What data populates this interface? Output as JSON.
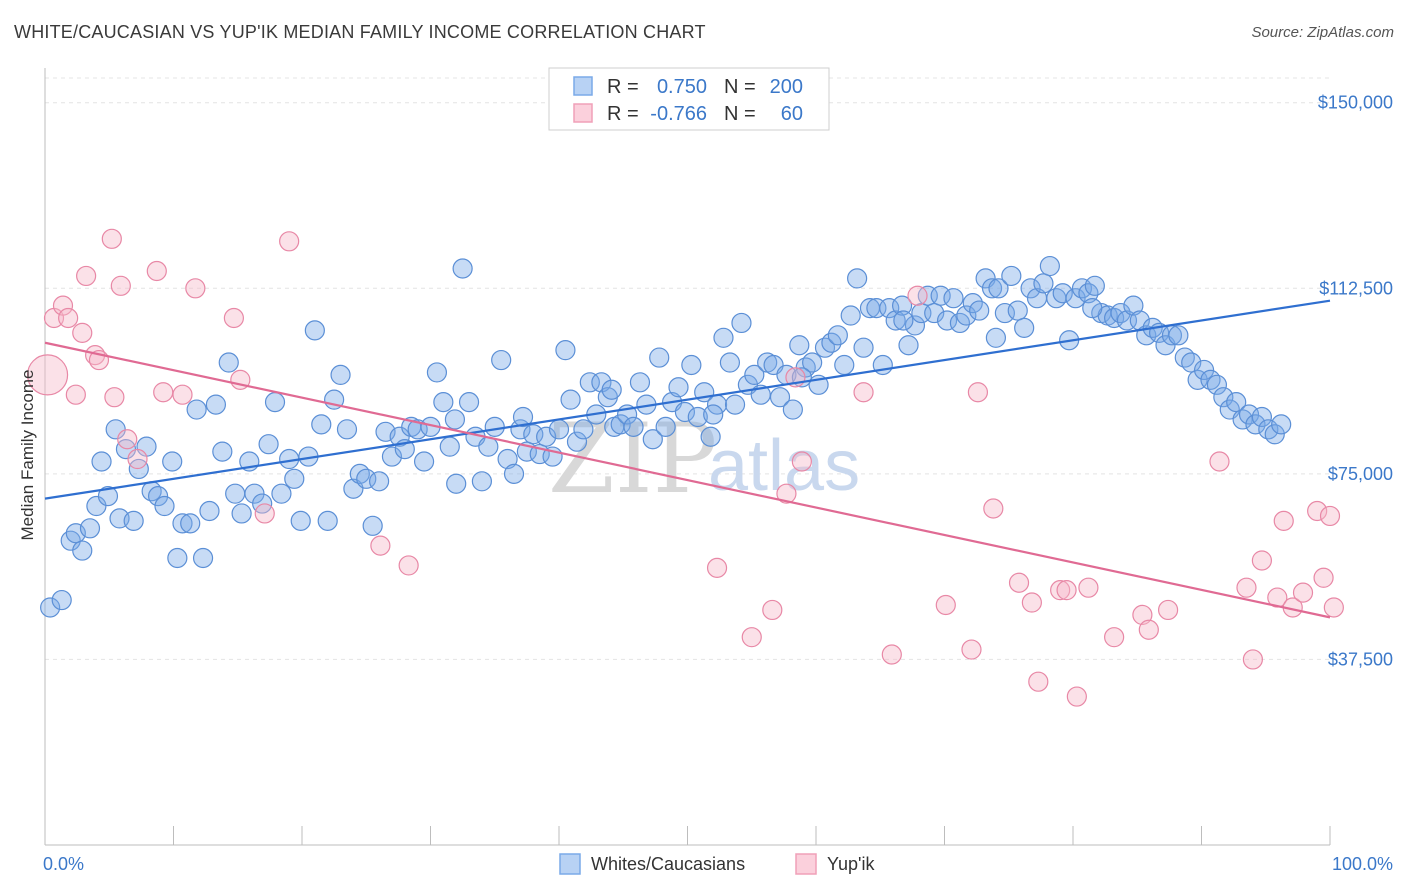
{
  "title": "WHITE/CAUCASIAN VS YUP'IK MEDIAN FAMILY INCOME CORRELATION CHART",
  "source": "Source: ZipAtlas.com",
  "watermark": {
    "zip": "ZIP",
    "atlas": "atlas"
  },
  "legend": {
    "r_label": "R =",
    "n_label": "N =",
    "rows": [
      {
        "r": "0.750",
        "n": "200",
        "color": "#7aaae8"
      },
      {
        "r": "-0.766",
        "n": "60",
        "color": "#f0a0b8"
      }
    ]
  },
  "chart_data": {
    "type": "scatter",
    "title": "WHITE/CAUCASIAN VS YUP'IK MEDIAN FAMILY INCOME CORRELATION CHART",
    "xlabel": "",
    "ylabel": "Median Family Income",
    "xlim": [
      0,
      100
    ],
    "ylim": [
      0,
      155000
    ],
    "x_tick_labels": [
      "0.0%",
      "100.0%"
    ],
    "y_ticks": [
      37500,
      75000,
      112500,
      150000
    ],
    "y_tick_labels": [
      "$37,500",
      "$75,000",
      "$112,500",
      "$150,000"
    ],
    "grid": true,
    "legend_position": "top-center",
    "series": [
      {
        "name": "Whites/Caucasians",
        "color": "#7aaae8",
        "stroke": "#5b8fd6",
        "trend": {
          "x": [
            0,
            100
          ],
          "y": [
            70000,
            110000
          ],
          "color": "#2f6fd0"
        },
        "points": [
          [
            0.4,
            48000
          ],
          [
            1.3,
            49500
          ],
          [
            2.0,
            61500
          ],
          [
            2.4,
            63000
          ],
          [
            2.9,
            59500
          ],
          [
            3.5,
            64000
          ],
          [
            4.0,
            68500
          ],
          [
            4.4,
            77500
          ],
          [
            4.9,
            70500
          ],
          [
            5.5,
            84000
          ],
          [
            5.8,
            66000
          ],
          [
            6.3,
            80000
          ],
          [
            6.9,
            65500
          ],
          [
            7.3,
            76000
          ],
          [
            7.9,
            80500
          ],
          [
            8.3,
            71500
          ],
          [
            8.8,
            70500
          ],
          [
            9.3,
            68500
          ],
          [
            9.9,
            77500
          ],
          [
            10.3,
            58000
          ],
          [
            10.7,
            65000
          ],
          [
            11.3,
            65000
          ],
          [
            11.8,
            88000
          ],
          [
            12.3,
            58000
          ],
          [
            12.8,
            67500
          ],
          [
            13.3,
            89000
          ],
          [
            13.8,
            79500
          ],
          [
            14.3,
            97500
          ],
          [
            14.8,
            71000
          ],
          [
            15.3,
            67000
          ],
          [
            15.9,
            77500
          ],
          [
            16.3,
            71000
          ],
          [
            16.9,
            69000
          ],
          [
            17.4,
            81000
          ],
          [
            17.9,
            89500
          ],
          [
            18.4,
            71000
          ],
          [
            19.0,
            78000
          ],
          [
            19.4,
            74000
          ],
          [
            19.9,
            65500
          ],
          [
            20.5,
            78500
          ],
          [
            21.0,
            104000
          ],
          [
            21.5,
            85000
          ],
          [
            22.0,
            65500
          ],
          [
            22.5,
            90000
          ],
          [
            23.0,
            95000
          ],
          [
            23.5,
            84000
          ],
          [
            24.0,
            72000
          ],
          [
            24.5,
            75000
          ],
          [
            25.0,
            74000
          ],
          [
            25.5,
            64500
          ],
          [
            26.0,
            73500
          ],
          [
            26.5,
            83500
          ],
          [
            27.0,
            78500
          ],
          [
            27.6,
            82500
          ],
          [
            28.0,
            80000
          ],
          [
            28.5,
            84500
          ],
          [
            29.0,
            84000
          ],
          [
            29.5,
            77500
          ],
          [
            30.0,
            84500
          ],
          [
            30.5,
            95500
          ],
          [
            31.0,
            89500
          ],
          [
            31.5,
            80500
          ],
          [
            32.0,
            73000
          ],
          [
            32.5,
            116500
          ],
          [
            33.0,
            89500
          ],
          [
            33.5,
            82500
          ],
          [
            34.0,
            73500
          ],
          [
            34.5,
            80500
          ],
          [
            35.0,
            84500
          ],
          [
            35.5,
            98000
          ],
          [
            36.0,
            78000
          ],
          [
            36.5,
            75000
          ],
          [
            37.0,
            84000
          ],
          [
            37.5,
            79500
          ],
          [
            38.0,
            83000
          ],
          [
            38.5,
            79000
          ],
          [
            39.0,
            82500
          ],
          [
            39.5,
            78500
          ],
          [
            40.0,
            84000
          ],
          [
            40.5,
            100000
          ],
          [
            40.9,
            90000
          ],
          [
            41.4,
            81500
          ],
          [
            41.9,
            84000
          ],
          [
            42.4,
            93500
          ],
          [
            42.9,
            87000
          ],
          [
            43.3,
            93500
          ],
          [
            43.8,
            90500
          ],
          [
            44.3,
            84500
          ],
          [
            44.8,
            85000
          ],
          [
            45.3,
            87000
          ],
          [
            45.8,
            84500
          ],
          [
            46.3,
            93500
          ],
          [
            46.8,
            89000
          ],
          [
            47.3,
            82000
          ],
          [
            47.8,
            98500
          ],
          [
            48.3,
            84500
          ],
          [
            48.8,
            89500
          ],
          [
            49.3,
            92500
          ],
          [
            49.8,
            87500
          ],
          [
            50.3,
            97000
          ],
          [
            50.8,
            86500
          ],
          [
            51.3,
            91500
          ],
          [
            51.8,
            82500
          ],
          [
            52.3,
            89000
          ],
          [
            52.8,
            102500
          ],
          [
            53.3,
            97500
          ],
          [
            53.7,
            89000
          ],
          [
            54.2,
            105500
          ],
          [
            54.7,
            93000
          ],
          [
            55.2,
            95000
          ],
          [
            55.7,
            91000
          ],
          [
            56.2,
            97500
          ],
          [
            56.7,
            97000
          ],
          [
            57.2,
            90500
          ],
          [
            57.7,
            95000
          ],
          [
            58.2,
            88000
          ],
          [
            58.7,
            101000
          ],
          [
            59.2,
            96500
          ],
          [
            59.7,
            97500
          ],
          [
            60.2,
            93000
          ],
          [
            60.7,
            100500
          ],
          [
            61.2,
            101500
          ],
          [
            61.7,
            103000
          ],
          [
            62.2,
            97000
          ],
          [
            62.7,
            107000
          ],
          [
            63.2,
            114500
          ],
          [
            63.7,
            100500
          ],
          [
            64.2,
            108500
          ],
          [
            64.7,
            108500
          ],
          [
            65.2,
            97000
          ],
          [
            65.7,
            108500
          ],
          [
            66.2,
            106000
          ],
          [
            66.7,
            109000
          ],
          [
            67.2,
            101000
          ],
          [
            67.7,
            105000
          ],
          [
            68.2,
            107500
          ],
          [
            68.7,
            111000
          ],
          [
            69.2,
            107500
          ],
          [
            69.7,
            111000
          ],
          [
            70.2,
            106000
          ],
          [
            70.7,
            110500
          ],
          [
            71.2,
            105500
          ],
          [
            71.7,
            107000
          ],
          [
            72.2,
            109500
          ],
          [
            72.7,
            108000
          ],
          [
            73.2,
            114500
          ],
          [
            73.7,
            112500
          ],
          [
            74.2,
            112500
          ],
          [
            74.7,
            107500
          ],
          [
            75.2,
            115000
          ],
          [
            75.7,
            108000
          ],
          [
            76.2,
            104500
          ],
          [
            76.7,
            112500
          ],
          [
            77.2,
            110500
          ],
          [
            77.7,
            113500
          ],
          [
            78.2,
            117000
          ],
          [
            78.7,
            110500
          ],
          [
            79.2,
            111500
          ],
          [
            79.7,
            102000
          ],
          [
            80.2,
            110500
          ],
          [
            80.7,
            112500
          ],
          [
            81.2,
            111500
          ],
          [
            81.7,
            113000
          ],
          [
            82.2,
            107500
          ],
          [
            82.7,
            107000
          ],
          [
            83.2,
            106500
          ],
          [
            83.7,
            107500
          ],
          [
            84.2,
            106000
          ],
          [
            84.7,
            109000
          ],
          [
            85.2,
            106000
          ],
          [
            85.7,
            103000
          ],
          [
            86.2,
            104500
          ],
          [
            86.7,
            103500
          ],
          [
            87.2,
            101000
          ],
          [
            87.7,
            103000
          ],
          [
            88.2,
            103000
          ],
          [
            88.7,
            98500
          ],
          [
            89.2,
            97500
          ],
          [
            89.7,
            94000
          ],
          [
            90.2,
            96000
          ],
          [
            90.7,
            94000
          ],
          [
            91.2,
            93000
          ],
          [
            91.7,
            90500
          ],
          [
            92.2,
            88000
          ],
          [
            92.7,
            89500
          ],
          [
            93.2,
            86000
          ],
          [
            93.7,
            87000
          ],
          [
            94.2,
            85000
          ],
          [
            94.7,
            86500
          ],
          [
            95.2,
            84000
          ],
          [
            95.7,
            83000
          ],
          [
            96.2,
            85000
          ],
          [
            31.9,
            86000
          ],
          [
            37.2,
            86500
          ],
          [
            44.1,
            92000
          ],
          [
            52.0,
            87000
          ],
          [
            58.9,
            94500
          ],
          [
            66.8,
            106000
          ],
          [
            74.0,
            102500
          ],
          [
            81.5,
            108500
          ]
        ]
      },
      {
        "name": "Yup'ik",
        "color": "#f5b8c8",
        "stroke": "#e888a6",
        "trend": {
          "x": [
            0,
            100
          ],
          "y": [
            101500,
            46000
          ],
          "color": "#e06a93"
        },
        "points": [
          [
            0.2,
            95000
          ],
          [
            0.7,
            106500
          ],
          [
            1.4,
            109000
          ],
          [
            1.8,
            106500
          ],
          [
            2.4,
            91000
          ],
          [
            2.9,
            103500
          ],
          [
            3.2,
            115000
          ],
          [
            3.9,
            99000
          ],
          [
            4.2,
            98000
          ],
          [
            5.2,
            122500
          ],
          [
            5.4,
            90500
          ],
          [
            5.9,
            113000
          ],
          [
            6.4,
            82000
          ],
          [
            7.2,
            78000
          ],
          [
            8.7,
            116000
          ],
          [
            9.2,
            91500
          ],
          [
            10.7,
            91000
          ],
          [
            11.7,
            112500
          ],
          [
            14.7,
            106500
          ],
          [
            15.2,
            94000
          ],
          [
            17.1,
            67000
          ],
          [
            19.0,
            122000
          ],
          [
            26.1,
            60500
          ],
          [
            28.3,
            56500
          ],
          [
            52.3,
            56000
          ],
          [
            55.0,
            42000
          ],
          [
            56.6,
            47500
          ],
          [
            57.7,
            71000
          ],
          [
            58.4,
            94500
          ],
          [
            58.9,
            77500
          ],
          [
            63.7,
            91500
          ],
          [
            65.9,
            38500
          ],
          [
            67.9,
            111000
          ],
          [
            70.1,
            48500
          ],
          [
            72.1,
            39500
          ],
          [
            72.6,
            91500
          ],
          [
            73.8,
            68000
          ],
          [
            75.8,
            53000
          ],
          [
            76.8,
            49000
          ],
          [
            77.3,
            33000
          ],
          [
            79.0,
            51500
          ],
          [
            79.5,
            51500
          ],
          [
            80.3,
            30000
          ],
          [
            81.2,
            52000
          ],
          [
            83.2,
            42000
          ],
          [
            85.4,
            46500
          ],
          [
            85.9,
            43500
          ],
          [
            87.4,
            47500
          ],
          [
            91.4,
            77500
          ],
          [
            93.5,
            52000
          ],
          [
            94.0,
            37500
          ],
          [
            94.7,
            57500
          ],
          [
            95.9,
            50000
          ],
          [
            96.4,
            65500
          ],
          [
            97.1,
            48000
          ],
          [
            97.9,
            51000
          ],
          [
            99.0,
            67500
          ],
          [
            99.5,
            54000
          ],
          [
            100.0,
            66500
          ],
          [
            100.3,
            48000
          ]
        ]
      }
    ]
  },
  "bottom_legend": [
    {
      "label": "Whites/Caucasians",
      "color": "#7aaae8"
    },
    {
      "label": "Yup'ik",
      "color": "#f5b8c8"
    }
  ]
}
